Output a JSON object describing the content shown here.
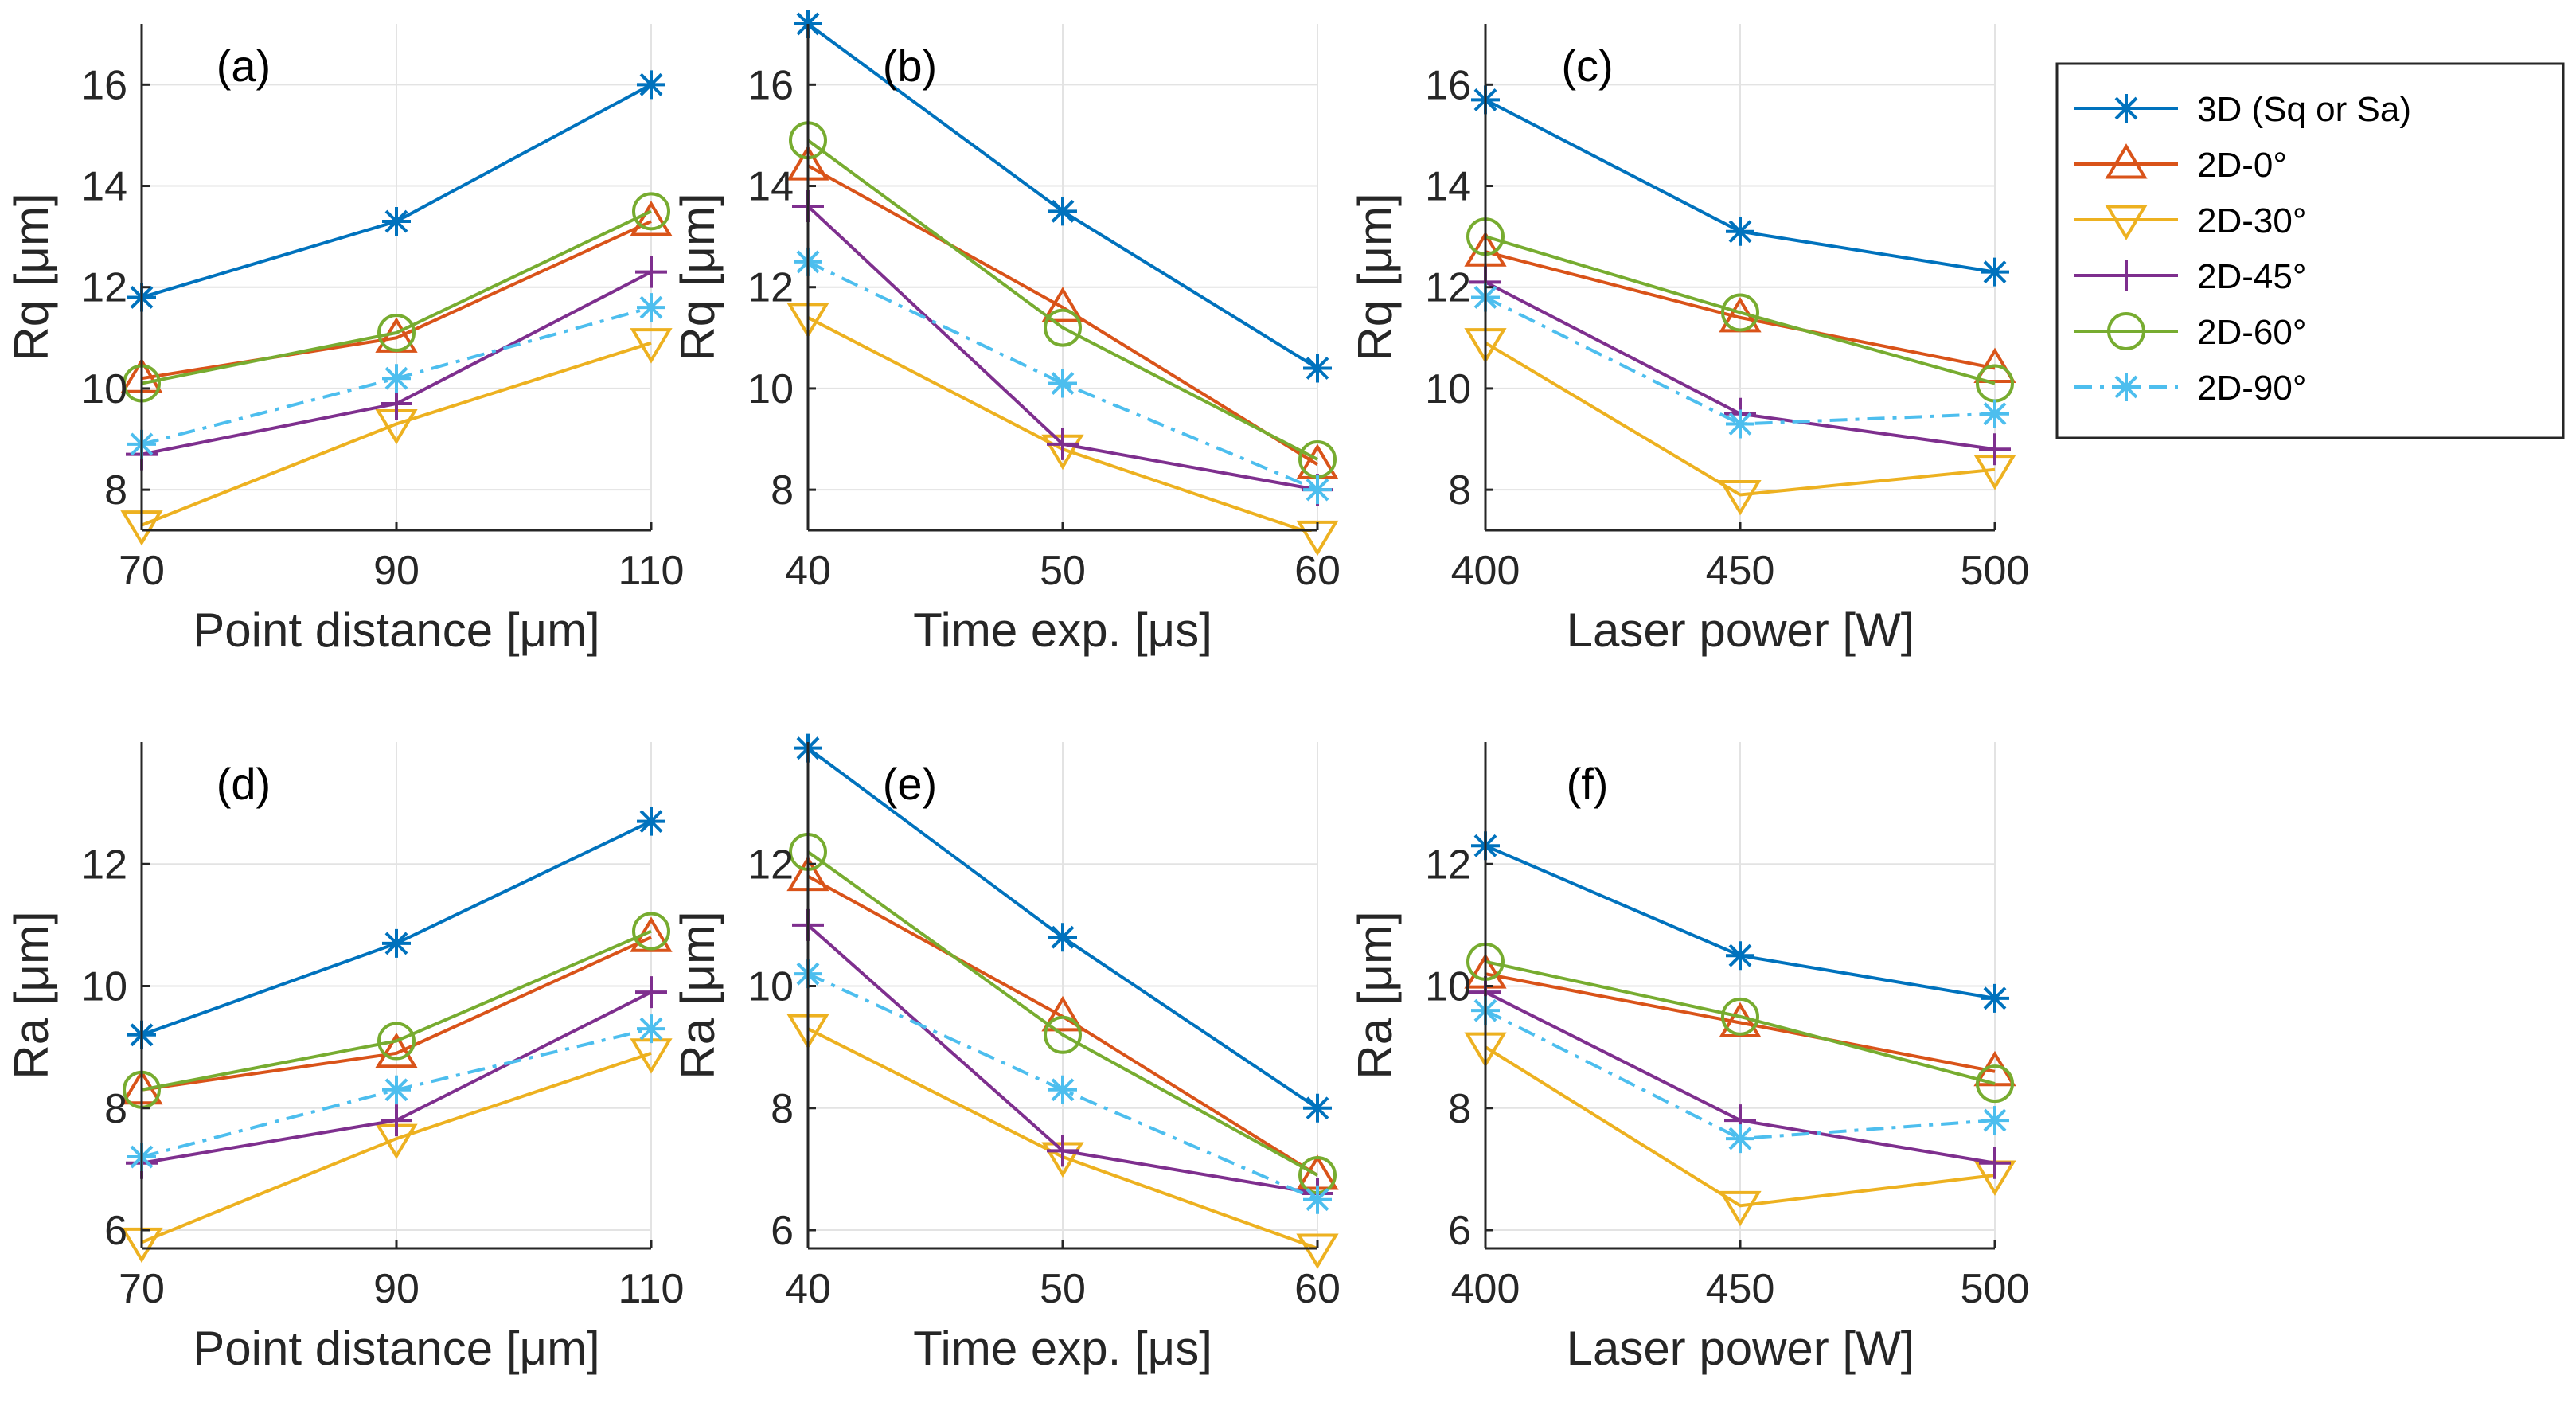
{
  "figure": {
    "colors": {
      "3D (Sq or Sa)": "#0072BD",
      "2D-0°": "#D95319",
      "2D-30°": "#EDB120",
      "2D-45°": "#7E2F8E",
      "2D-60°": "#77AC30",
      "2D-90°": "#4DBEEE"
    },
    "markers": {
      "3D (Sq or Sa)": "asterisk",
      "2D-0°": "triangle-up",
      "2D-30°": "triangle-down",
      "2D-45°": "plus",
      "2D-60°": "circle",
      "2D-90°": "asterisk"
    },
    "line_styles": {
      "3D (Sq or Sa)": "solid",
      "2D-0°": "solid",
      "2D-30°": "solid",
      "2D-45°": "solid",
      "2D-60°": "solid",
      "2D-90°": "dashdot"
    }
  },
  "legend": {
    "placement": "top-right",
    "entries": [
      "3D (Sq or Sa)",
      "2D-0°",
      "2D-30°",
      "2D-45°",
      "2D-60°",
      "2D-90°"
    ]
  },
  "chart_data": [
    {
      "panel": "(a)",
      "type": "line",
      "xlabel": "Point distance [μm]",
      "ylabel": "Rq [μm]",
      "x": [
        70,
        90,
        110
      ],
      "x_ticks": [
        70,
        90,
        110
      ],
      "xlim": [
        70,
        110
      ],
      "ylim": [
        7.2,
        17.2
      ],
      "y_ticks": [
        8,
        10,
        12,
        14,
        16
      ],
      "grid": true,
      "series": [
        {
          "name": "3D (Sq or Sa)",
          "values": [
            11.8,
            13.3,
            16.0
          ]
        },
        {
          "name": "2D-0°",
          "values": [
            10.2,
            11.0,
            13.3
          ]
        },
        {
          "name": "2D-30°",
          "values": [
            7.3,
            9.3,
            10.9
          ]
        },
        {
          "name": "2D-45°",
          "values": [
            8.7,
            9.7,
            12.3
          ]
        },
        {
          "name": "2D-60°",
          "values": [
            10.1,
            11.1,
            13.5
          ]
        },
        {
          "name": "2D-90°",
          "values": [
            8.9,
            10.2,
            11.6
          ]
        }
      ]
    },
    {
      "panel": "(b)",
      "type": "line",
      "xlabel": "Time exp. [μs]",
      "ylabel": "Rq [μm]",
      "x": [
        40,
        50,
        60
      ],
      "x_ticks": [
        40,
        50,
        60
      ],
      "xlim": [
        40,
        60
      ],
      "ylim": [
        7.2,
        17.2
      ],
      "y_ticks": [
        8,
        10,
        12,
        14,
        16
      ],
      "grid": true,
      "series": [
        {
          "name": "3D (Sq or Sa)",
          "values": [
            17.2,
            13.5,
            10.4
          ]
        },
        {
          "name": "2D-0°",
          "values": [
            14.4,
            11.6,
            8.5
          ]
        },
        {
          "name": "2D-30°",
          "values": [
            11.4,
            8.8,
            7.1
          ]
        },
        {
          "name": "2D-45°",
          "values": [
            13.6,
            8.9,
            8.0
          ]
        },
        {
          "name": "2D-60°",
          "values": [
            14.9,
            11.2,
            8.6
          ]
        },
        {
          "name": "2D-90°",
          "values": [
            12.5,
            10.1,
            8.0
          ]
        }
      ]
    },
    {
      "panel": "(c)",
      "type": "line",
      "xlabel": "Laser power [W]",
      "ylabel": "Rq [μm]",
      "x": [
        400,
        450,
        500
      ],
      "x_ticks": [
        400,
        450,
        500
      ],
      "xlim": [
        400,
        500
      ],
      "ylim": [
        7.2,
        17.2
      ],
      "y_ticks": [
        8,
        10,
        12,
        14,
        16
      ],
      "grid": true,
      "series": [
        {
          "name": "3D (Sq or Sa)",
          "values": [
            15.7,
            13.1,
            12.3
          ]
        },
        {
          "name": "2D-0°",
          "values": [
            12.7,
            11.4,
            10.4
          ]
        },
        {
          "name": "2D-30°",
          "values": [
            10.9,
            7.9,
            8.4
          ]
        },
        {
          "name": "2D-45°",
          "values": [
            12.1,
            9.5,
            8.8
          ]
        },
        {
          "name": "2D-60°",
          "values": [
            13.0,
            11.5,
            10.1
          ]
        },
        {
          "name": "2D-90°",
          "values": [
            11.8,
            9.3,
            9.5
          ]
        }
      ]
    },
    {
      "panel": "(d)",
      "type": "line",
      "xlabel": "Point distance [μm]",
      "ylabel": "Ra [μm]",
      "x": [
        70,
        90,
        110
      ],
      "x_ticks": [
        70,
        90,
        110
      ],
      "xlim": [
        70,
        110
      ],
      "ylim": [
        5.7,
        14.0
      ],
      "y_ticks": [
        6,
        8,
        10,
        12
      ],
      "grid": true,
      "series": [
        {
          "name": "3D (Sq or Sa)",
          "values": [
            9.2,
            10.7,
            12.7
          ]
        },
        {
          "name": "2D-0°",
          "values": [
            8.3,
            8.9,
            10.8
          ]
        },
        {
          "name": "2D-30°",
          "values": [
            5.8,
            7.5,
            8.9
          ]
        },
        {
          "name": "2D-45°",
          "values": [
            7.1,
            7.8,
            9.9
          ]
        },
        {
          "name": "2D-60°",
          "values": [
            8.3,
            9.1,
            10.9
          ]
        },
        {
          "name": "2D-90°",
          "values": [
            7.2,
            8.3,
            9.3
          ]
        }
      ]
    },
    {
      "panel": "(e)",
      "type": "line",
      "xlabel": "Time exp. [μs]",
      "ylabel": "Ra [μm]",
      "x": [
        40,
        50,
        60
      ],
      "x_ticks": [
        40,
        50,
        60
      ],
      "xlim": [
        40,
        60
      ],
      "ylim": [
        5.7,
        14.0
      ],
      "y_ticks": [
        6,
        8,
        10,
        12
      ],
      "grid": true,
      "series": [
        {
          "name": "3D (Sq or Sa)",
          "values": [
            13.9,
            10.8,
            8.0
          ]
        },
        {
          "name": "2D-0°",
          "values": [
            11.8,
            9.5,
            6.9
          ]
        },
        {
          "name": "2D-30°",
          "values": [
            9.3,
            7.2,
            5.7
          ]
        },
        {
          "name": "2D-45°",
          "values": [
            11.0,
            7.3,
            6.6
          ]
        },
        {
          "name": "2D-60°",
          "values": [
            12.2,
            9.2,
            6.9
          ]
        },
        {
          "name": "2D-90°",
          "values": [
            10.2,
            8.3,
            6.5
          ]
        }
      ]
    },
    {
      "panel": "(f)",
      "type": "line",
      "xlabel": "Laser power [W]",
      "ylabel": "Ra [μm]",
      "x": [
        400,
        450,
        500
      ],
      "x_ticks": [
        400,
        450,
        500
      ],
      "xlim": [
        400,
        500
      ],
      "ylim": [
        5.7,
        14.0
      ],
      "y_ticks": [
        6,
        8,
        10,
        12
      ],
      "grid": true,
      "series": [
        {
          "name": "3D (Sq or Sa)",
          "values": [
            12.3,
            10.5,
            9.8
          ]
        },
        {
          "name": "2D-0°",
          "values": [
            10.2,
            9.4,
            8.6
          ]
        },
        {
          "name": "2D-30°",
          "values": [
            9.0,
            6.4,
            6.9
          ]
        },
        {
          "name": "2D-45°",
          "values": [
            9.9,
            7.8,
            7.1
          ]
        },
        {
          "name": "2D-60°",
          "values": [
            10.4,
            9.5,
            8.4
          ]
        },
        {
          "name": "2D-90°",
          "values": [
            9.6,
            7.5,
            7.8
          ]
        }
      ]
    }
  ]
}
